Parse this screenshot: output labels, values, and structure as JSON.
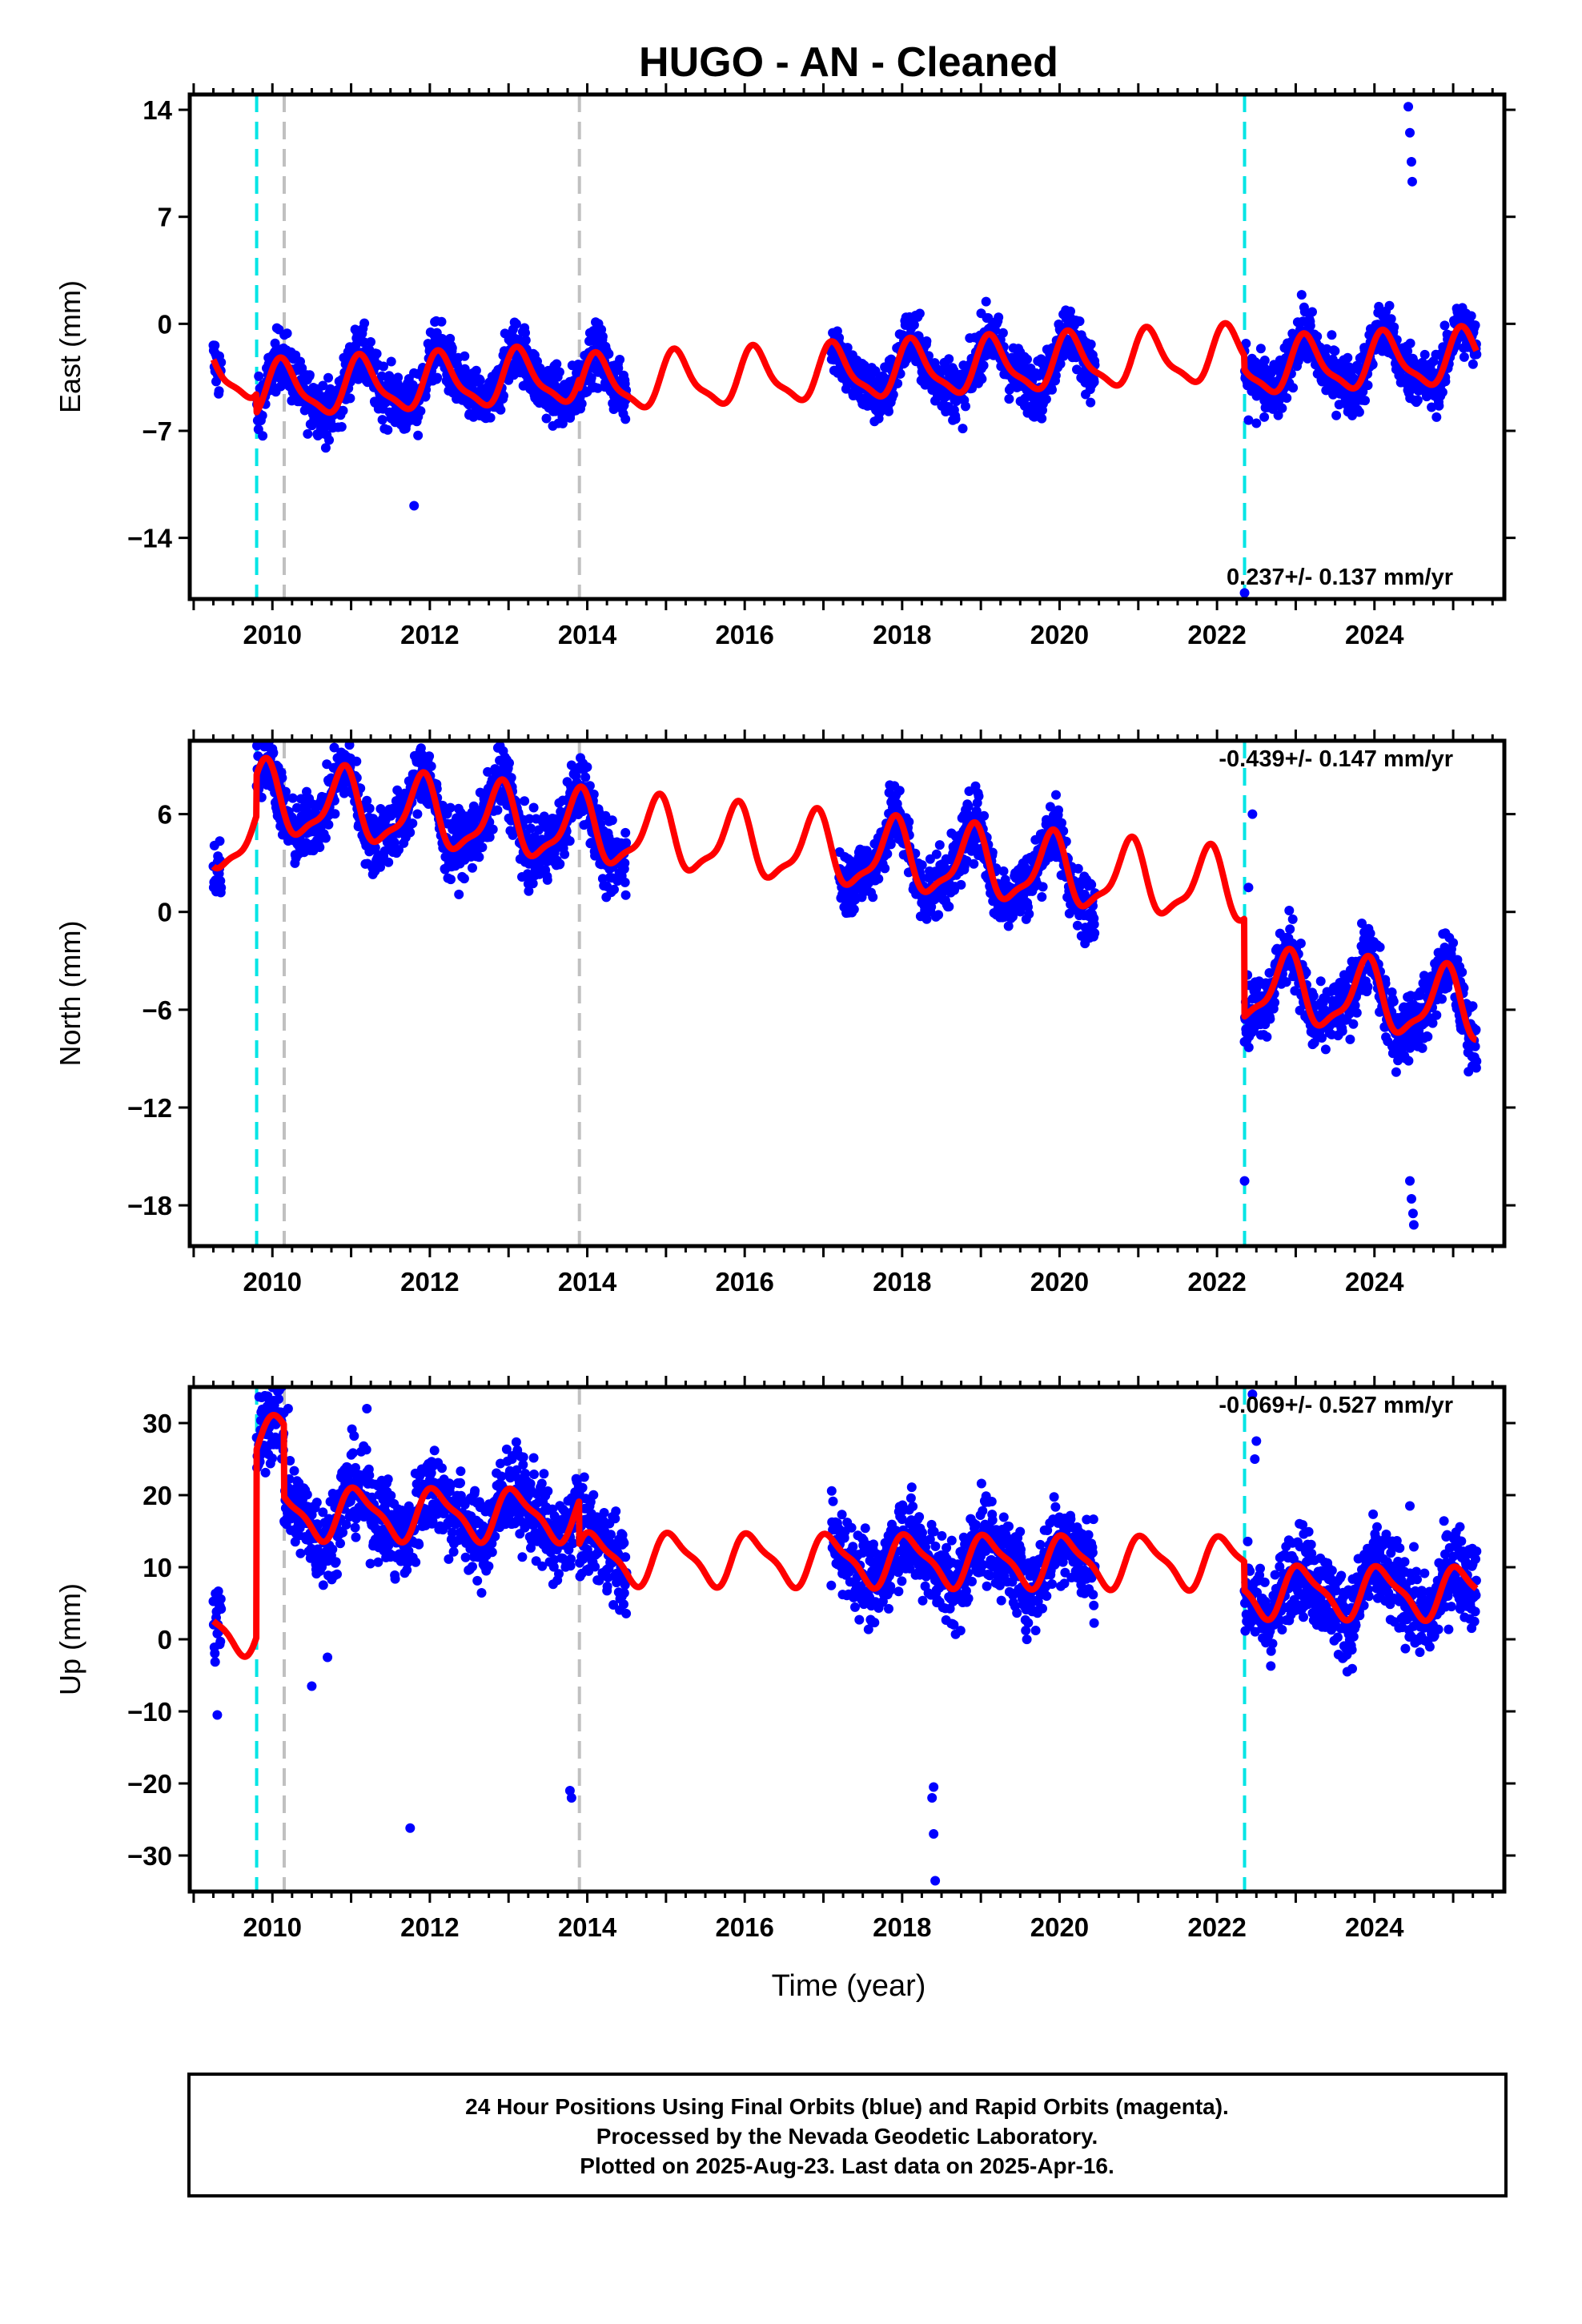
{
  "title": "HUGO  - AN - Cleaned",
  "xlabel": "Time (year)",
  "footer": {
    "line1": "24 Hour Positions Using Final Orbits (blue) and Rapid Orbits (magenta).",
    "line2": "Processed by the Nevada Geodetic Laboratory.",
    "line3": "Plotted on 2025-Aug-23. Last data on 2025-Apr-16."
  },
  "colors": {
    "data_points": "#0000ff",
    "model_fit": "#ff0000",
    "equipment_change": "#00e5e5",
    "other_event": "#c0c0c0",
    "frame": "#000000"
  },
  "chart_data": [
    {
      "type": "scatter",
      "component": "East",
      "ylabel": "East (mm)",
      "rate_label": "0.237+/- 0.137 mm/yr",
      "xlim": [
        2008.95,
        2025.65
      ],
      "ylim": [
        -18,
        15
      ],
      "xticks": [
        2010,
        2012,
        2014,
        2016,
        2018,
        2020,
        2022,
        2024
      ],
      "yticks": [
        14,
        7,
        0,
        -7,
        -14
      ],
      "ytick_labels": [
        "14",
        "7",
        "0",
        "−7",
        "−14"
      ],
      "event_lines": [
        {
          "x": 2009.8,
          "kind": "equipment_change"
        },
        {
          "x": 2010.15,
          "kind": "other_event"
        },
        {
          "x": 2013.9,
          "kind": "other_event"
        },
        {
          "x": 2022.35,
          "kind": "equipment_change"
        }
      ],
      "data_segments": [
        [
          2009.25,
          2009.35
        ],
        [
          2009.8,
          2014.5
        ],
        [
          2017.1,
          2020.45
        ],
        [
          2022.35,
          2025.3
        ]
      ],
      "model": {
        "offset": -1.5,
        "rate": 0.237,
        "ref_year": 2017,
        "amp_cos": 1.1,
        "amp_sin": 1.3,
        "amp_cos2": 0.3,
        "amp_sin2": 0.4,
        "steps": [
          {
            "x": 2009.8,
            "dy": -1.2
          },
          {
            "x": 2013.9,
            "dy": -0.6
          },
          {
            "x": 2022.35,
            "dy": -0.9
          }
        ]
      },
      "scatter_noise": 1.3,
      "outliers": [
        {
          "x": 2011.8,
          "y": -11.9
        },
        {
          "x": 2010.72,
          "y": -7.6
        },
        {
          "x": 2011.85,
          "y": -7.3
        },
        {
          "x": 2019.0,
          "y": -3.5
        },
        {
          "x": 2024.43,
          "y": 14.2
        },
        {
          "x": 2024.45,
          "y": 12.5
        },
        {
          "x": 2024.47,
          "y": 10.6
        },
        {
          "x": 2024.48,
          "y": 9.3
        },
        {
          "x": 2022.4,
          "y": -6.3
        },
        {
          "x": 2022.5,
          "y": -6.5
        },
        {
          "x": 2022.6,
          "y": -6.1
        },
        {
          "x": 2022.35,
          "y": -17.6
        },
        {
          "x": 2024.9,
          "y": -3.5
        }
      ]
    },
    {
      "type": "scatter",
      "component": "North",
      "ylabel": "North (mm)",
      "rate_label": "-0.439+/- 0.147 mm/yr",
      "xlim": [
        2008.95,
        2025.65
      ],
      "ylim": [
        -20.5,
        10.5
      ],
      "xticks": [
        2010,
        2012,
        2014,
        2016,
        2018,
        2020,
        2022,
        2024
      ],
      "yticks": [
        6,
        0,
        -6,
        -12,
        -18
      ],
      "ytick_labels": [
        "6",
        "0",
        "−6",
        "−12",
        "−18"
      ],
      "event_lines": [
        {
          "x": 2009.8,
          "kind": "equipment_change"
        },
        {
          "x": 2010.15,
          "kind": "other_event"
        },
        {
          "x": 2013.9,
          "kind": "other_event"
        },
        {
          "x": 2022.35,
          "kind": "equipment_change"
        }
      ],
      "data_segments": [
        [
          2009.25,
          2009.35
        ],
        [
          2009.8,
          2014.5
        ],
        [
          2017.2,
          2020.45
        ],
        [
          2022.35,
          2025.3
        ]
      ],
      "model": {
        "offset": 1.2,
        "rate": -0.439,
        "ref_year": 2017,
        "amp_cos": 1.6,
        "amp_sin": -1.3,
        "amp_cos2": 0.5,
        "amp_sin2": -0.4,
        "steps": [
          {
            "x": 2009.8,
            "dy": 2.5
          },
          {
            "x": 2022.35,
            "dy": -6.0
          }
        ]
      },
      "scatter_noise": 1.4,
      "outliers": [
        {
          "x": 2022.45,
          "y": 6.0
        },
        {
          "x": 2022.4,
          "y": 1.5
        },
        {
          "x": 2022.35,
          "y": -16.5
        },
        {
          "x": 2024.45,
          "y": -16.5
        },
        {
          "x": 2024.47,
          "y": -17.6
        },
        {
          "x": 2024.49,
          "y": -18.5
        },
        {
          "x": 2024.5,
          "y": -19.2
        },
        {
          "x": 2013.8,
          "y": 9.0
        },
        {
          "x": 2010.0,
          "y": 10.0
        },
        {
          "x": 2010.95,
          "y": 9.5
        }
      ]
    },
    {
      "type": "scatter",
      "component": "Up",
      "ylabel": "Up (mm)",
      "rate_label": "-0.069+/- 0.527 mm/yr",
      "xlim": [
        2008.95,
        2025.65
      ],
      "ylim": [
        -35,
        35
      ],
      "xticks": [
        2010,
        2012,
        2014,
        2016,
        2018,
        2020,
        2022,
        2024
      ],
      "yticks": [
        30,
        20,
        10,
        0,
        -10,
        -20,
        -30
      ],
      "ytick_labels": [
        "30",
        "20",
        "10",
        "0",
        "−10",
        "−20",
        "−30"
      ],
      "event_lines": [
        {
          "x": 2009.8,
          "kind": "equipment_change"
        },
        {
          "x": 2010.15,
          "kind": "other_event"
        },
        {
          "x": 2013.9,
          "kind": "other_event"
        },
        {
          "x": 2022.35,
          "kind": "equipment_change"
        }
      ],
      "data_segments": [
        [
          2009.25,
          2009.35
        ],
        [
          2009.8,
          2014.5
        ],
        [
          2017.1,
          2020.45
        ],
        [
          2022.35,
          2025.3
        ]
      ],
      "model": {
        "offset": 1.0,
        "rate": -0.069,
        "ref_year": 2017,
        "amp_cos": 2.8,
        "amp_sin": 1.8,
        "amp_cos2": 0.8,
        "amp_sin2": -0.6,
        "steps": [
          {
            "x": 2009.8,
            "dy": 26.0
          },
          {
            "x": 2010.15,
            "dy": -10.0
          },
          {
            "x": 2013.9,
            "dy": -6.0
          },
          {
            "x": 2022.35,
            "dy": -4.0
          }
        ]
      },
      "scatter_noise": 4.2,
      "outliers": [
        {
          "x": 2009.3,
          "y": -10.5
        },
        {
          "x": 2011.75,
          "y": -26.2
        },
        {
          "x": 2013.8,
          "y": -22.0
        },
        {
          "x": 2013.78,
          "y": -21.0
        },
        {
          "x": 2018.4,
          "y": -27.0
        },
        {
          "x": 2018.42,
          "y": -33.5
        },
        {
          "x": 2018.38,
          "y": -22.0
        },
        {
          "x": 2018.4,
          "y": -20.5
        },
        {
          "x": 2022.45,
          "y": 34.0
        },
        {
          "x": 2022.5,
          "y": 27.5
        },
        {
          "x": 2022.48,
          "y": 25.0
        },
        {
          "x": 2024.45,
          "y": 18.5
        },
        {
          "x": 2010.2,
          "y": 32.0
        },
        {
          "x": 2011.2,
          "y": 32.0
        },
        {
          "x": 2010.5,
          "y": -6.5
        },
        {
          "x": 2010.7,
          "y": -2.5
        }
      ]
    }
  ]
}
